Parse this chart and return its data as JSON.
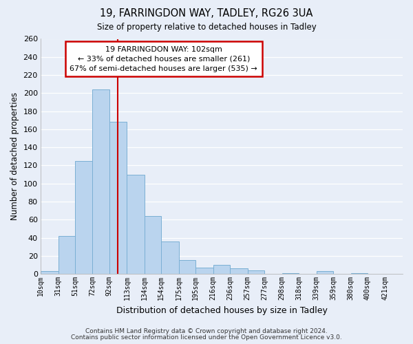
{
  "title": "19, FARRINGDON WAY, TADLEY, RG26 3UA",
  "subtitle": "Size of property relative to detached houses in Tadley",
  "xlabel": "Distribution of detached houses by size in Tadley",
  "ylabel": "Number of detached properties",
  "bin_labels": [
    "10sqm",
    "31sqm",
    "51sqm",
    "72sqm",
    "92sqm",
    "113sqm",
    "134sqm",
    "154sqm",
    "175sqm",
    "195sqm",
    "216sqm",
    "236sqm",
    "257sqm",
    "277sqm",
    "298sqm",
    "318sqm",
    "339sqm",
    "359sqm",
    "380sqm",
    "400sqm",
    "421sqm"
  ],
  "bin_edges": [
    10,
    31,
    51,
    72,
    92,
    113,
    134,
    154,
    175,
    195,
    216,
    236,
    257,
    277,
    298,
    318,
    339,
    359,
    380,
    400,
    421,
    442
  ],
  "bar_heights": [
    3,
    42,
    125,
    204,
    168,
    110,
    64,
    36,
    15,
    7,
    10,
    6,
    4,
    0,
    1,
    0,
    3,
    0,
    1,
    0,
    0
  ],
  "bar_color": "#bad4ee",
  "bar_edge_color": "#7aafd4",
  "background_color": "#e8eef8",
  "plot_bg_color": "#e8eef8",
  "grid_color": "#ffffff",
  "property_line_x": 102,
  "annotation_title": "19 FARRINGDON WAY: 102sqm",
  "annotation_line1": "← 33% of detached houses are smaller (261)",
  "annotation_line2": "67% of semi-detached houses are larger (535) →",
  "annotation_box_color": "#ffffff",
  "annotation_box_edge": "#cc0000",
  "red_line_color": "#cc0000",
  "ylim": [
    0,
    260
  ],
  "yticks": [
    0,
    20,
    40,
    60,
    80,
    100,
    120,
    140,
    160,
    180,
    200,
    220,
    240,
    260
  ],
  "footer1": "Contains HM Land Registry data © Crown copyright and database right 2024.",
  "footer2": "Contains public sector information licensed under the Open Government Licence v3.0."
}
